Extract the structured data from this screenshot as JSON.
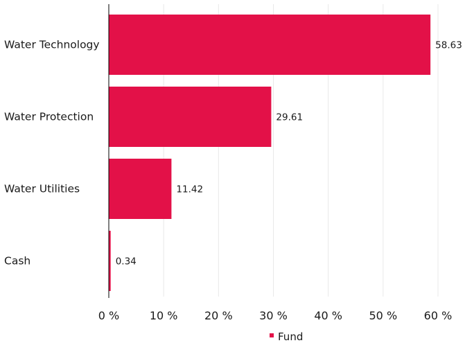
{
  "chart_data": {
    "type": "bar",
    "orientation": "horizontal",
    "categories": [
      "Water Technology",
      "Water Protection",
      "Water Utilities",
      "Cash"
    ],
    "series": [
      {
        "name": "Fund",
        "values": [
          58.63,
          29.61,
          11.42,
          0.34
        ],
        "color": "#e31148"
      }
    ],
    "data_labels": [
      "58.63",
      "29.61",
      "11.42",
      "0.34"
    ],
    "xlim": [
      0,
      60
    ],
    "x_ticks": [
      0,
      10,
      20,
      30,
      40,
      50,
      60
    ],
    "x_tick_labels": [
      "0 %",
      "10 %",
      "20 %",
      "30 %",
      "40 %",
      "50 %",
      "60 %"
    ],
    "grid": true,
    "legend_position": "bottom-center",
    "title": "",
    "xlabel": "",
    "ylabel": ""
  }
}
